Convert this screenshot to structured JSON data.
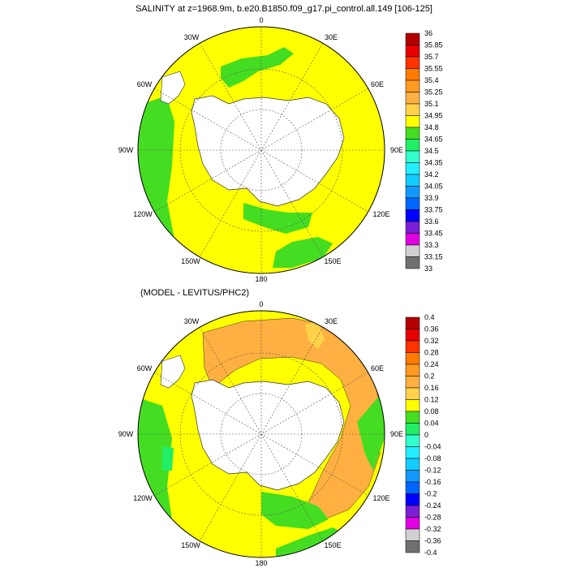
{
  "panel_top": {
    "title": "SALINITY at z=1968.9m, b.e20.B1850.f09_g17.pi_control.all.149 [106-125]",
    "lon_labels": [
      "0",
      "30E",
      "60E",
      "90E",
      "120E",
      "150E",
      "180",
      "150W",
      "120W",
      "90W",
      "60W",
      "30W"
    ],
    "colorbar": {
      "levels": [
        "36",
        "35.85",
        "35.7",
        "35.55",
        "35.4",
        "35.25",
        "35.1",
        "34.95",
        "34.8",
        "34.65",
        "34.5",
        "34.35",
        "34.2",
        "34.05",
        "33.9",
        "33.75",
        "33.6",
        "33.45",
        "33.3",
        "33.15",
        "33"
      ],
      "colors": [
        "#b30000",
        "#e60000",
        "#ff3300",
        "#ff7a00",
        "#ff9a22",
        "#ffb040",
        "#ffd24a",
        "#ffff00",
        "#44dd22",
        "#22ee66",
        "#33ffcc",
        "#22eeff",
        "#11ccff",
        "#1199ff",
        "#0066ff",
        "#0000ff",
        "#7a1fd6",
        "#e100e1",
        "#d0d0d0",
        "#707070"
      ]
    },
    "field_colors": {
      "ocean": "#ffff00",
      "band": "#44dd22",
      "land": "#ffffff",
      "warm": "#ffb040"
    }
  },
  "panel_bottom": {
    "title": "(MODEL - LEVITUS/PHC2)",
    "lon_labels": [
      "0",
      "30E",
      "60E",
      "90E",
      "120E",
      "150E",
      "180",
      "150W",
      "120W",
      "90W",
      "60W",
      "30W"
    ],
    "colorbar": {
      "levels": [
        "0.4",
        "0.36",
        "0.32",
        "0.28",
        "0.24",
        "0.2",
        "0.16",
        "0.12",
        "0.08",
        "0.04",
        "0",
        "-0.04",
        "-0.08",
        "-0.12",
        "-0.16",
        "-0.2",
        "-0.24",
        "-0.28",
        "-0.32",
        "-0.36",
        "-0.4"
      ],
      "colors": [
        "#b30000",
        "#e60000",
        "#ff3300",
        "#ff7a00",
        "#ff9a22",
        "#ffb040",
        "#ffd24a",
        "#ffff00",
        "#44dd22",
        "#22ee66",
        "#33ffcc",
        "#22eeff",
        "#11ccff",
        "#1199ff",
        "#0066ff",
        "#0000ff",
        "#7a1fd6",
        "#e100e1",
        "#d0d0d0",
        "#707070"
      ]
    },
    "field_colors": {
      "ocean": "#ffff00",
      "band": "#44dd22",
      "land": "#ffffff",
      "warm": "#ffb040"
    }
  }
}
